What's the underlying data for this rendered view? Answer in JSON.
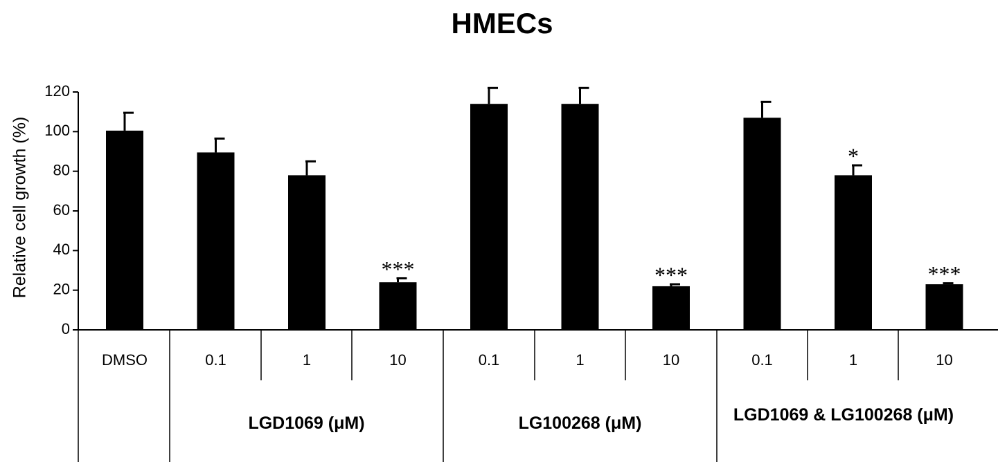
{
  "chart_data": {
    "type": "bar",
    "title": "HMECs",
    "y_label": "Relative cell growth (%)",
    "categories": [
      "DMSO",
      "0.1",
      "1",
      "10",
      "0.1",
      "1",
      "10",
      "0.1",
      "1",
      "10"
    ],
    "values": [
      100.5,
      89.5,
      78,
      24,
      114,
      114,
      22,
      107,
      78,
      23
    ],
    "errors": [
      9,
      7,
      7,
      2,
      8,
      8,
      1,
      8,
      5,
      0.5
    ],
    "significance": [
      null,
      null,
      null,
      "***",
      null,
      null,
      "***",
      null,
      "*",
      "***"
    ],
    "groups": [
      "LGD1069 (μM)",
      "LG100268 (μM)",
      "LGD1069 & LG100268 (μM)"
    ],
    "color": "#000000",
    "ylim": [
      0,
      120
    ],
    "yticks": [
      0,
      20,
      40,
      60,
      80,
      100,
      120
    ]
  }
}
